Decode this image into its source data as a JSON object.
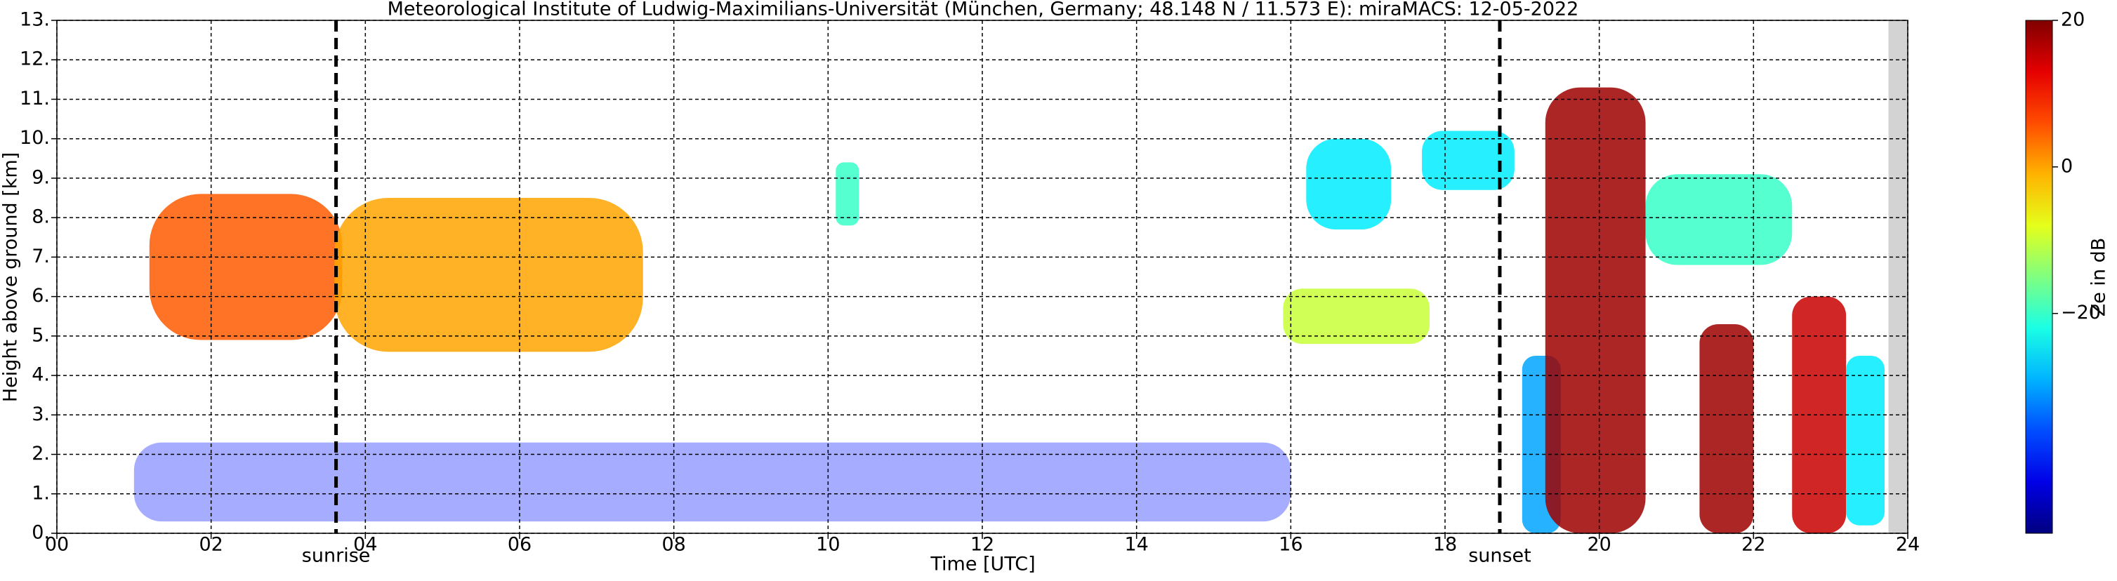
{
  "chart_data": {
    "type": "time-height",
    "title": "Meteorological Institute of Ludwig-Maximilians-Universität (München, Germany; 48.148 N / 11.573 E):    miraMACS: 12-05-2022",
    "x_label": "Time [UTC]",
    "y_label": "Height above ground [km]",
    "colorbar_label": "Ze in dB",
    "xlim": [
      0,
      24
    ],
    "xticks": [
      {
        "value": 0,
        "label": "00"
      },
      {
        "value": 2,
        "label": "02"
      },
      {
        "value": 4,
        "label": "04"
      },
      {
        "value": 6,
        "label": "06"
      },
      {
        "value": 8,
        "label": "08"
      },
      {
        "value": 10,
        "label": "10"
      },
      {
        "value": 12,
        "label": "12"
      },
      {
        "value": 14,
        "label": "14"
      },
      {
        "value": 16,
        "label": "16"
      },
      {
        "value": 18,
        "label": "18"
      },
      {
        "value": 20,
        "label": "20"
      },
      {
        "value": 22,
        "label": "22"
      },
      {
        "value": 24,
        "label": "24"
      }
    ],
    "ylim": [
      0,
      13
    ],
    "yticks": [
      {
        "value": 0,
        "label": "0."
      },
      {
        "value": 1,
        "label": "1."
      },
      {
        "value": 2,
        "label": "2."
      },
      {
        "value": 3,
        "label": "3."
      },
      {
        "value": 4,
        "label": "4."
      },
      {
        "value": 5,
        "label": "5."
      },
      {
        "value": 6,
        "label": "6."
      },
      {
        "value": 7,
        "label": "7."
      },
      {
        "value": 8,
        "label": "8."
      },
      {
        "value": 9,
        "label": "9."
      },
      {
        "value": 10,
        "label": "10."
      },
      {
        "value": 11,
        "label": "11."
      },
      {
        "value": 12,
        "label": "12."
      },
      {
        "value": 13,
        "label": "13."
      }
    ],
    "clim": [
      -50,
      20
    ],
    "cticks": [
      {
        "value": -20,
        "label": "−20"
      },
      0,
      20
    ],
    "colormap": "jet",
    "grid": true,
    "events": [
      {
        "time": 3.62,
        "label": "sunrise"
      },
      {
        "time": 18.71,
        "label": "sunset"
      }
    ],
    "missing": [
      23.75,
      24
    ],
    "echoes": [
      {
        "t0": 1.0,
        "t1": 16.0,
        "h0": 0.3,
        "h1": 2.3,
        "ze": -40
      },
      {
        "t0": 1.2,
        "t1": 3.7,
        "h0": 4.9,
        "h1": 8.6,
        "ze": 5
      },
      {
        "t0": 3.6,
        "t1": 7.6,
        "h0": 4.6,
        "h1": 8.5,
        "ze": 0
      },
      {
        "t0": 10.1,
        "t1": 10.4,
        "h0": 7.8,
        "h1": 9.4,
        "ze": -20
      },
      {
        "t0": 15.9,
        "t1": 17.8,
        "h0": 4.8,
        "h1": 6.2,
        "ze": -10
      },
      {
        "t0": 16.2,
        "t1": 17.3,
        "h0": 7.7,
        "h1": 10.0,
        "ze": -25
      },
      {
        "t0": 17.7,
        "t1": 18.9,
        "h0": 8.7,
        "h1": 10.2,
        "ze": -25
      },
      {
        "t0": 19.0,
        "t1": 19.5,
        "h0": 0.0,
        "h1": 4.5,
        "ze": -30
      },
      {
        "t0": 19.3,
        "t1": 20.6,
        "h0": 0.0,
        "h1": 11.3,
        "ze": 18
      },
      {
        "t0": 20.6,
        "t1": 22.5,
        "h0": 6.8,
        "h1": 9.1,
        "ze": -20
      },
      {
        "t0": 21.3,
        "t1": 22.0,
        "h0": 0.0,
        "h1": 5.3,
        "ze": 18
      },
      {
        "t0": 22.5,
        "t1": 23.2,
        "h0": 0.0,
        "h1": 6.0,
        "ze": 15
      },
      {
        "t0": 23.2,
        "t1": 23.7,
        "h0": 0.2,
        "h1": 4.5,
        "ze": -25
      }
    ]
  }
}
